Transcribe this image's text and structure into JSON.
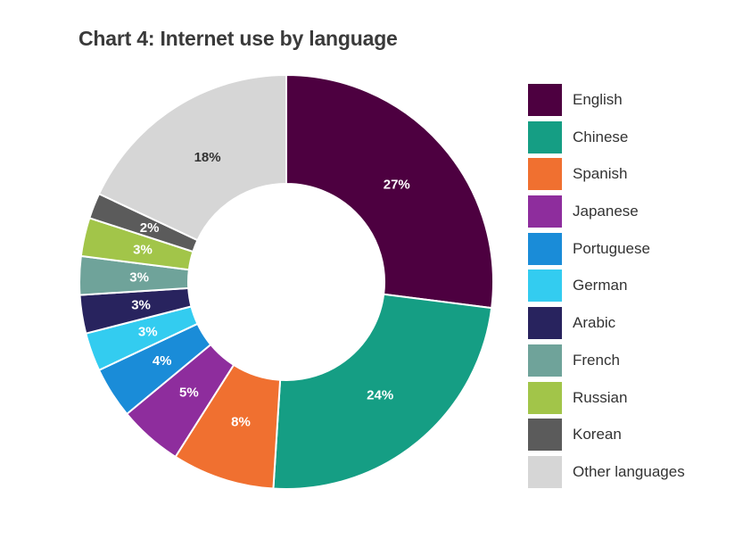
{
  "chart_data": {
    "type": "pie",
    "title": "Chart 4: Internet use by language",
    "donut": true,
    "legend_position": "right",
    "slices": [
      {
        "label": "English",
        "value": 27,
        "display": "27%",
        "color": "#4d0040",
        "label_color": "#ffffff"
      },
      {
        "label": "Chinese",
        "value": 24,
        "display": "24%",
        "color": "#159e84",
        "label_color": "#ffffff"
      },
      {
        "label": "Spanish",
        "value": 8,
        "display": "8%",
        "color": "#f07030",
        "label_color": "#ffffff"
      },
      {
        "label": "Japanese",
        "value": 5,
        "display": "5%",
        "color": "#8e2d9d",
        "label_color": "#ffffff"
      },
      {
        "label": "Portuguese",
        "value": 4,
        "display": "4%",
        "color": "#1a8cd8",
        "label_color": "#ffffff"
      },
      {
        "label": "German",
        "value": 3,
        "display": "3%",
        "color": "#33ccf0",
        "label_color": "#ffffff"
      },
      {
        "label": "Arabic",
        "value": 3,
        "display": "3%",
        "color": "#28235e",
        "label_color": "#ffffff"
      },
      {
        "label": "French",
        "value": 3,
        "display": "3%",
        "color": "#6fa39a",
        "label_color": "#ffffff"
      },
      {
        "label": "Russian",
        "value": 3,
        "display": "3%",
        "color": "#a2c549",
        "label_color": "#ffffff"
      },
      {
        "label": "Korean",
        "value": 2,
        "display": "2%",
        "color": "#5b5b5b",
        "label_color": "#ffffff"
      },
      {
        "label": "Other languages",
        "value": 18,
        "display": "18%",
        "color": "#d6d6d6",
        "label_color": "#333333"
      }
    ]
  }
}
